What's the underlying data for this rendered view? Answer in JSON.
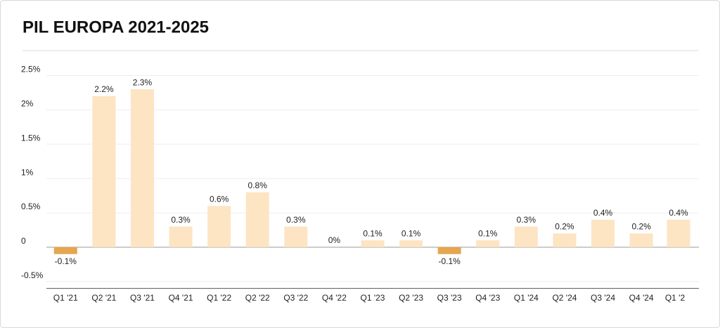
{
  "chart_data": {
    "type": "bar",
    "title": "PIL EUROPA 2021-2025",
    "categories": [
      "Q1 '21",
      "Q2 '21",
      "Q3 '21",
      "Q4 '21",
      "Q1 '22",
      "Q2 '22",
      "Q3 '22",
      "Q4 '22",
      "Q1 '23",
      "Q2 '23",
      "Q3 '23",
      "Q4 '23",
      "Q1 '24",
      "Q2 '24",
      "Q3 '24",
      "Q4 '24",
      "Q1 '2"
    ],
    "values": [
      -0.1,
      2.2,
      2.3,
      0.3,
      0.6,
      0.8,
      0.3,
      0,
      0.1,
      0.1,
      -0.1,
      0.1,
      0.3,
      0.2,
      0.4,
      0.2,
      0.4
    ],
    "value_labels": [
      "-0.1%",
      "2.2%",
      "2.3%",
      "0.3%",
      "0.6%",
      "0.8%",
      "0.3%",
      "0%",
      "0.1%",
      "0.1%",
      "-0.1%",
      "0.1%",
      "0.3%",
      "0.2%",
      "0.4%",
      "0.2%",
      "0.4%"
    ],
    "color": "#fde4c3",
    "negative_color": "#e6a64f",
    "ylim": [
      -0.6,
      2.7
    ],
    "yticks": [
      {
        "value": -0.5,
        "label": "-0.5%"
      },
      0,
      {
        "value": 0.5,
        "label": "0.5%"
      },
      {
        "value": 1,
        "label": "1%"
      },
      {
        "value": 1.5,
        "label": "1.5%"
      },
      {
        "value": 2,
        "label": "2%"
      },
      {
        "value": 2.5,
        "label": "2.5%"
      }
    ],
    "grid": true
  }
}
